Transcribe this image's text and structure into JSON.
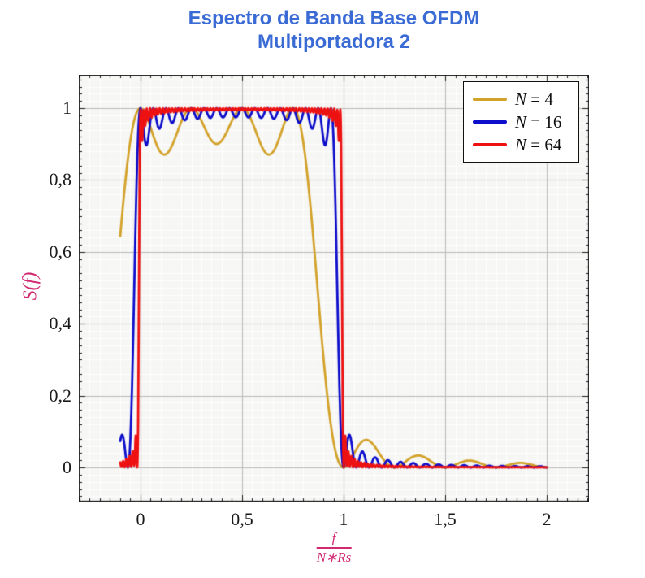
{
  "title": {
    "line1": "Espectro de Banda Base OFDM",
    "line2": "Multiportadora 2",
    "color": "#3a6bd5"
  },
  "axes": {
    "xlim": [
      -0.304,
      2.208
    ],
    "ylim": [
      -0.095,
      1.093
    ],
    "x_major_ticks": {
      "values": [
        0,
        0.5,
        1,
        1.5,
        2
      ],
      "labels": [
        "0",
        "0,5",
        "1",
        "1,5",
        "2"
      ]
    },
    "y_major_ticks": {
      "values": [
        0,
        0.2,
        0.4,
        0.6,
        0.8,
        1
      ],
      "labels": [
        "0",
        "0,2",
        "0,4",
        "0,6",
        "0,8",
        "1"
      ]
    },
    "x_minor_step": 0.05,
    "y_minor_step": 0.02,
    "xlabel": {
      "numerator": "f",
      "denominator": "N∗Rs",
      "color": "#d12a72"
    },
    "ylabel": {
      "text": "S(f)",
      "color": "#d12a72"
    },
    "plot_bg": "#f6f6f4",
    "grid_major_color": "#bababa",
    "grid_minor_color": "#ffffff",
    "border_color": "#1a1a1a",
    "tick_color": "#1a1a1a"
  },
  "chart_data": {
    "type": "line",
    "title": "Espectro de Banda Base OFDM — Multiportadora 2",
    "xlabel": "f/(N*Rs)",
    "ylabel": "S(f)",
    "xlim": [
      -0.304,
      2.208
    ],
    "ylim": [
      -0.095,
      1.093
    ],
    "grid": true,
    "legend_position": "top-right",
    "x_domain": [
      -0.1,
      2.0
    ],
    "sample_step": 0.0042,
    "formula": "S(x) = sum_{k=0}^{N-1} sinc^2(N*x - k), sinc(t) = sin(pi*t)/(pi*t); x = f/(N*Rs)",
    "interpolation": "catmull-rom (spline smoothing as in source plot, causes slight over/undershoot at sharp edges)",
    "series": [
      {
        "name": "N = 4",
        "N": 4,
        "color": "#d3a22a",
        "peak": 1.0,
        "in_band_ripple_min": 0.87,
        "band": [
          0.0,
          1.0
        ],
        "value_at_start": 0.64,
        "first_sidelobe": {
          "x": 1.12,
          "y": 0.075
        }
      },
      {
        "name": "N = 16",
        "N": 16,
        "color": "#0d0dcc",
        "peak": 1.0,
        "in_band_ripple_min": 0.93,
        "band": [
          0.0,
          1.0
        ],
        "value_at_start": 0.07,
        "first_sidelobe": {
          "x": 1.03,
          "y": 0.09
        }
      },
      {
        "name": "N = 64",
        "N": 64,
        "color": "#ee1111",
        "peak": 1.02,
        "in_band_ripple_min": 0.97,
        "band": [
          0.0,
          1.0
        ],
        "value_at_start": 0.01,
        "undershoot_min": -0.04,
        "first_sidelobe": {
          "x": 1.01,
          "y": 0.04
        }
      }
    ]
  }
}
